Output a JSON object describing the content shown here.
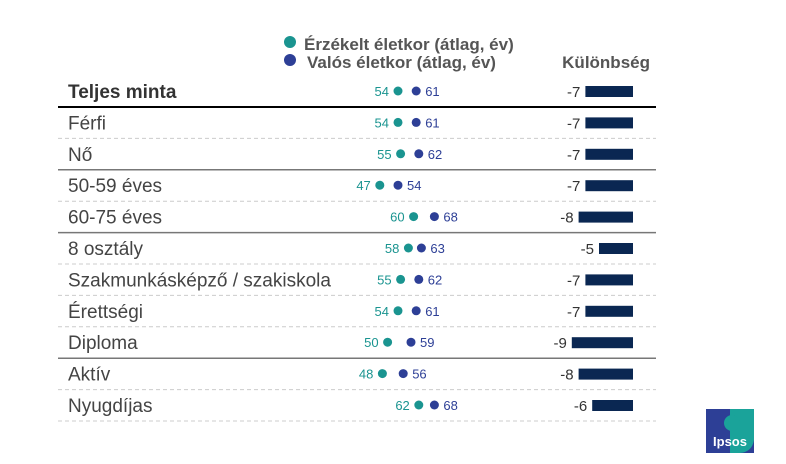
{
  "chart_data": {
    "type": "dot-and-bar",
    "legend": [
      {
        "name": "Érzékelt életkor (átlag, év)",
        "color": "#1a9490"
      },
      {
        "name": "Valós életkor (átlag, év)",
        "color": "#2d3f96"
      }
    ],
    "diff_header": "Különbség",
    "bar_color": "#0a2752",
    "rows": [
      {
        "label": "Teljes minta",
        "perceived": 54,
        "actual": 61,
        "diff": -7,
        "bold": true
      },
      {
        "label": "Férfi",
        "perceived": 54,
        "actual": 61,
        "diff": -7
      },
      {
        "label": "Nő",
        "perceived": 55,
        "actual": 62,
        "diff": -7
      },
      {
        "label": "50-59 éves",
        "perceived": 47,
        "actual": 54,
        "diff": -7
      },
      {
        "label": "60-75 éves",
        "perceived": 60,
        "actual": 68,
        "diff": -8
      },
      {
        "label": "8 osztály",
        "perceived": 58,
        "actual": 63,
        "diff": -5
      },
      {
        "label": "Szakmunkásképző / szakiskola",
        "perceived": 55,
        "actual": 62,
        "diff": -7
      },
      {
        "label": "Érettségi",
        "perceived": 54,
        "actual": 61,
        "diff": -7
      },
      {
        "label": "Diploma",
        "perceived": 50,
        "actual": 59,
        "diff": -9
      },
      {
        "label": "Aktív",
        "perceived": 48,
        "actual": 56,
        "diff": -8
      },
      {
        "label": "Nyugdíjas",
        "perceived": 62,
        "actual": 68,
        "diff": -6
      }
    ],
    "group_breaks_after": [
      0,
      2,
      4,
      8
    ]
  },
  "logo": {
    "text": "Ipsos"
  }
}
